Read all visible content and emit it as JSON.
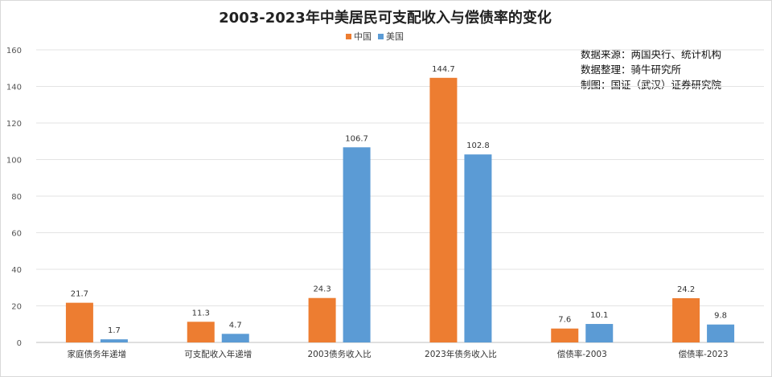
{
  "chart_data": {
    "type": "bar",
    "title": "2003-2023年中美居民可支配收入与偿债率的变化",
    "categories": [
      "家庭债务年递增",
      "可支配收入年递增",
      "2003债务收入比",
      "2023年债务收入比",
      "偿债率-2003",
      "偿债率-2023"
    ],
    "series": [
      {
        "name": "中国",
        "color": "#ed7d31",
        "values": [
          21.7,
          11.3,
          24.3,
          144.7,
          7.6,
          24.2
        ]
      },
      {
        "name": "美国",
        "color": "#5b9bd5",
        "values": [
          1.7,
          4.7,
          106.7,
          102.8,
          10.1,
          9.8
        ]
      }
    ],
    "ylim": [
      0,
      160
    ],
    "yticks": [
      0,
      20,
      40,
      60,
      80,
      100,
      120,
      140,
      160
    ],
    "grid": true,
    "legend_position": "top-center",
    "annotations": [
      "数据来源：两国央行、统计机构",
      "数据整理：骑牛研究所",
      "制图：国证（武汉）证券研究院"
    ]
  }
}
